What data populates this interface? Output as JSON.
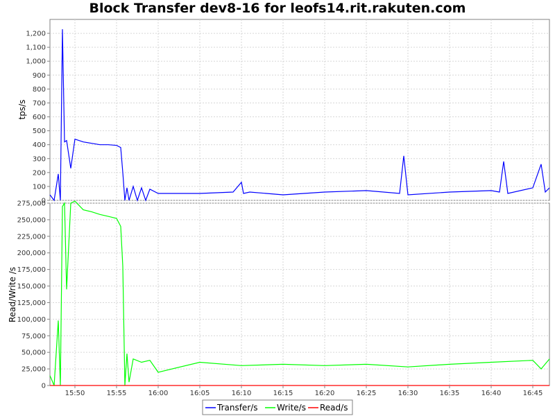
{
  "chart_data": {
    "type": "line",
    "title": "Block Transfer dev8-16 for leofs14.rit.rakuten.com",
    "x_ticks": [
      "15:50",
      "15:55",
      "16:00",
      "16:05",
      "16:10",
      "16:15",
      "16:20",
      "16:25",
      "16:30",
      "16:35",
      "16:40",
      "16:45"
    ],
    "x_range": [
      "15:47",
      "16:47"
    ],
    "grid": true,
    "legend_placement": "bottom",
    "legend": [
      {
        "name": "Transfer/s",
        "color": "#0000ff"
      },
      {
        "name": "Write/s",
        "color": "#00ff00"
      },
      {
        "name": "Read/s",
        "color": "#ff0000"
      }
    ],
    "panels": [
      {
        "ylabel": "tps/s",
        "ylim": [
          0,
          1300
        ],
        "y_ticks": [
          "0",
          "100",
          "200",
          "300",
          "400",
          "500",
          "600",
          "700",
          "800",
          "900",
          "1,000",
          "1,100",
          "1,200"
        ],
        "y_tick_values": [
          0,
          100,
          200,
          300,
          400,
          500,
          600,
          700,
          800,
          900,
          1000,
          1100,
          1200
        ],
        "series": [
          {
            "name": "Transfer/s",
            "color": "#0000ff",
            "x": [
              "15:47",
              "15:47:30",
              "15:48",
              "15:48:15",
              "15:48:30",
              "15:48:45",
              "15:49",
              "15:49:30",
              "15:50",
              "15:51",
              "15:52",
              "15:53",
              "15:54",
              "15:55",
              "15:55:30",
              "15:55:45",
              "15:56",
              "15:56:15",
              "15:56:30",
              "15:57",
              "15:57:30",
              "15:58",
              "15:58:30",
              "15:59",
              "16:00",
              "16:05",
              "16:09",
              "16:10",
              "16:10:15",
              "16:11",
              "16:15",
              "16:20",
              "16:25",
              "16:29",
              "16:29:30",
              "16:30",
              "16:35",
              "16:40",
              "16:41",
              "16:41:30",
              "16:42",
              "16:45",
              "16:46",
              "16:46:30",
              "16:47"
            ],
            "values": [
              40,
              0,
              190,
              0,
              1230,
              420,
              430,
              230,
              440,
              420,
              410,
              400,
              400,
              395,
              380,
              200,
              0,
              90,
              0,
              100,
              0,
              90,
              0,
              80,
              50,
              50,
              60,
              130,
              50,
              60,
              40,
              60,
              70,
              50,
              320,
              40,
              60,
              70,
              60,
              280,
              50,
              90,
              260,
              60,
              90
            ]
          }
        ]
      },
      {
        "ylabel": "Read/Write /s",
        "ylim": [
          0,
          275000
        ],
        "y_ticks": [
          "0",
          "25,000",
          "50,000",
          "75,000",
          "100,000",
          "125,000",
          "150,000",
          "175,000",
          "200,000",
          "225,000",
          "250,000",
          "275,000"
        ],
        "y_tick_values": [
          0,
          25000,
          50000,
          75000,
          100000,
          125000,
          150000,
          175000,
          200000,
          225000,
          250000,
          275000
        ],
        "series": [
          {
            "name": "Write/s",
            "color": "#00ff00",
            "x": [
              "15:47",
              "15:47:30",
              "15:48",
              "15:48:15",
              "15:48:30",
              "15:48:45",
              "15:49",
              "15:49:30",
              "15:50",
              "15:51",
              "15:52",
              "15:53",
              "15:54",
              "15:55",
              "15:55:30",
              "15:55:45",
              "15:56",
              "15:56:15",
              "15:56:30",
              "15:57",
              "15:58",
              "15:59",
              "16:00",
              "16:05",
              "16:10",
              "16:15",
              "16:20",
              "16:25",
              "16:30",
              "16:35",
              "16:40",
              "16:45",
              "16:46",
              "16:47"
            ],
            "values": [
              15000,
              0,
              98000,
              0,
              270000,
              275000,
              145000,
              275000,
              278000,
              265000,
              262000,
              258000,
              255000,
              252000,
              240000,
              180000,
              0,
              48000,
              5000,
              40000,
              35000,
              38000,
              20000,
              35000,
              30000,
              32000,
              30000,
              32000,
              28000,
              32000,
              35000,
              38000,
              25000,
              40000
            ]
          },
          {
            "name": "Read/s",
            "color": "#ff0000",
            "x": [
              "15:47",
              "16:47"
            ],
            "values": [
              0,
              0
            ]
          }
        ]
      }
    ]
  }
}
